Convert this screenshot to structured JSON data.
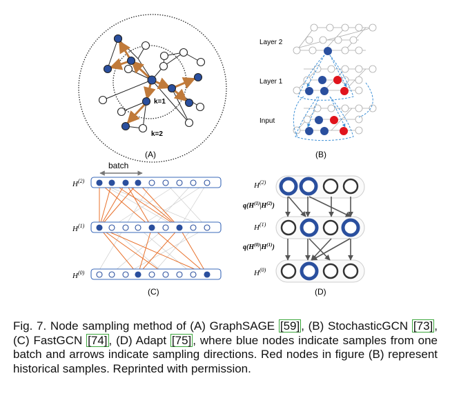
{
  "panels": {
    "a": {
      "label": "(A)",
      "k1": "k=1",
      "k2": "k=2"
    },
    "b": {
      "label": "(B)",
      "layer2": "Layer 2",
      "layer1": "Layer 1",
      "input": "Input"
    },
    "c": {
      "label": "(C)",
      "batch": "batch",
      "h2_base": "H",
      "h2_sup": "(2)",
      "h1_base": "H",
      "h1_sup": "(1)",
      "h0_base": "H",
      "h0_sup": "(0)"
    },
    "d": {
      "label": "(D)",
      "h2_base": "H",
      "h2_sup": "(2)",
      "h1_base": "H",
      "h1_sup": "(1)",
      "h0_base": "H",
      "h0_sup": "(0)",
      "q1_a": "q(H",
      "q1_b": "(1)",
      "q1_c": "|H",
      "q1_d": "(2)",
      "q1_e": ")",
      "q0_a": "q(H",
      "q0_b": "(0)",
      "q0_c": "|H",
      "q0_d": "(1)",
      "q0_e": ")"
    }
  },
  "caption": {
    "t1": "Fig. 7. Node sampling method of (A) GraphSAGE ",
    "r1": "[59]",
    "t2": ", (B) StochasticGCN ",
    "r2": "[73]",
    "t3": ", (C) FastGCN ",
    "r3": "[74]",
    "t4": ", (D) Adapt ",
    "r4": "[75]",
    "t5": ", where blue nodes indicate samples from one batch and arrows indicate sampling directions. Red nodes in figure (B) represent historical samples. Reprinted with permission."
  },
  "colors": {
    "blue": "#2a4f9e",
    "orange": "#c07a3a",
    "red": "#e0141c",
    "dashed": "#3c8fd6",
    "fastgcn_orange": "#e8702a"
  }
}
